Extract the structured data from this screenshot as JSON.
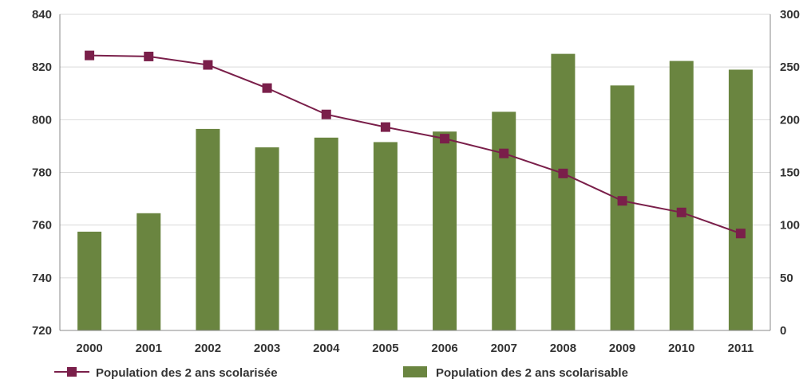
{
  "chart_data": {
    "type": "bar+line",
    "categories": [
      "2000",
      "2001",
      "2002",
      "2003",
      "2004",
      "2005",
      "2006",
      "2007",
      "2008",
      "2009",
      "2010",
      "2011"
    ],
    "series": [
      {
        "name": "Population des 2 ans scolarisée",
        "kind": "line",
        "axis": "right",
        "color": "#7a1f4a",
        "values": [
          261,
          260,
          252,
          230,
          205,
          193,
          182,
          168,
          149,
          123,
          112,
          92
        ]
      },
      {
        "name": "Population des 2 ans scolarisable",
        "kind": "bar",
        "axis": "left",
        "color": "#6a8540",
        "values": [
          757.5,
          764.5,
          796.5,
          789.5,
          793.2,
          791.5,
          795.5,
          803,
          825,
          813,
          822.3,
          819
        ]
      }
    ],
    "y_left": {
      "min": 720,
      "max": 840,
      "ticks": [
        "720",
        "740",
        "760",
        "780",
        "800",
        "820",
        "840"
      ]
    },
    "y_right": {
      "min": 0,
      "max": 300,
      "ticks": [
        "0",
        "50",
        "100",
        "150",
        "200",
        "250",
        "300"
      ]
    },
    "grid": true,
    "legend_position": "bottom"
  }
}
